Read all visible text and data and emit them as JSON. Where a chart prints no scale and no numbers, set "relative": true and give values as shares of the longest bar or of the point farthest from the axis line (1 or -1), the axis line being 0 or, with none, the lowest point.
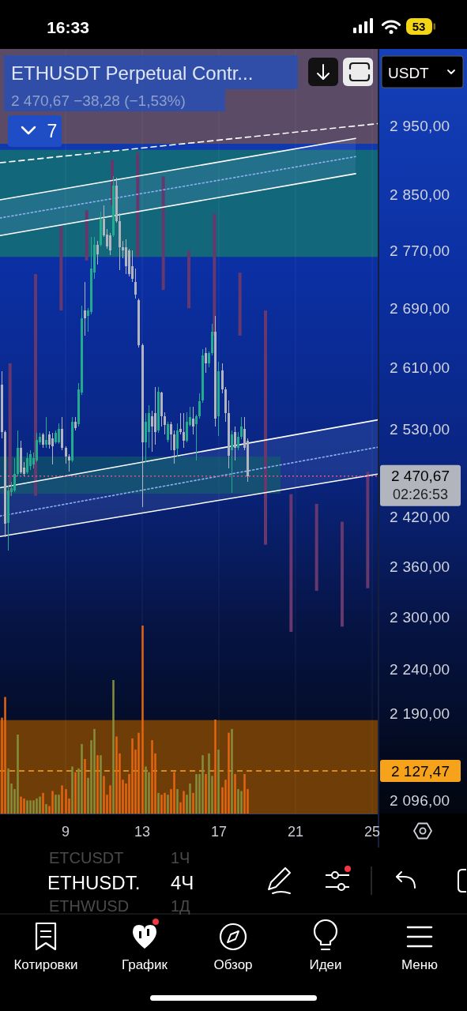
{
  "chart_data": [
    {
      "type": "candlestick",
      "title": "ETHUSDT Perpetual Contr...",
      "subtitle": "2 470,67 −38,28 (−1,53%)",
      "x": [
        5.667,
        5.833,
        6,
        6.167,
        6.333,
        6.5,
        6.667,
        6.833,
        7,
        7.167,
        7.333,
        7.5,
        7.667,
        7.833,
        8,
        8.167,
        8.333,
        8.5,
        8.667,
        8.833,
        9,
        9.167,
        9.333,
        9.5,
        9.667,
        9.833,
        10,
        10.167,
        10.333,
        10.5,
        10.667,
        10.833,
        11,
        11.167,
        11.333,
        11.5,
        11.667,
        11.833,
        12,
        12.167,
        12.333,
        12.5,
        12.667,
        12.833,
        13,
        13.167,
        13.333,
        13.5,
        13.667,
        13.833,
        14,
        14.167,
        14.333,
        14.5,
        14.667,
        14.833,
        15,
        15.167,
        15.333,
        15.5,
        15.667,
        15.833,
        16,
        16.167,
        16.333,
        16.5,
        16.667,
        16.833,
        17,
        17.167,
        17.333,
        17.5,
        17.667,
        17.833,
        18,
        18.167,
        18.333,
        18.5
      ],
      "ohlc": [
        [
          2588,
          2605,
          2518,
          2526
        ],
        [
          2526,
          2528,
          2395,
          2412
        ],
        [
          2413,
          2458,
          2379,
          2453
        ],
        [
          2451,
          2463,
          2446,
          2456
        ],
        [
          2453,
          2493,
          2451,
          2473
        ],
        [
          2473,
          2528,
          2470,
          2506
        ],
        [
          2506,
          2515,
          2473,
          2475
        ],
        [
          2481,
          2488,
          2470,
          2473
        ],
        [
          2475,
          2500,
          2473,
          2493
        ],
        [
          2483,
          2503,
          2478,
          2498
        ],
        [
          2485,
          2500,
          2480,
          2493
        ],
        [
          2490,
          2525,
          2488,
          2516
        ],
        [
          2513,
          2525,
          2510,
          2520
        ],
        [
          2523,
          2525,
          2506,
          2510
        ],
        [
          2510,
          2546,
          2506,
          2516
        ],
        [
          2523,
          2527,
          2505,
          2510
        ],
        [
          2518,
          2525,
          2485,
          2508
        ],
        [
          2513,
          2528,
          2511,
          2525
        ],
        [
          2513,
          2538,
          2511,
          2530
        ],
        [
          2530,
          2546,
          2503,
          2506
        ],
        [
          2506,
          2508,
          2486,
          2495
        ],
        [
          2495,
          2498,
          2476,
          2490
        ],
        [
          2490,
          2546,
          2488,
          2540
        ],
        [
          2540,
          2546,
          2528,
          2531
        ],
        [
          2536,
          2590,
          2533,
          2582
        ],
        [
          2577,
          2694,
          2574,
          2676
        ],
        [
          2687,
          2726,
          2653,
          2676
        ],
        [
          2680,
          2690,
          2658,
          2687
        ],
        [
          2685,
          2789,
          2682,
          2745
        ],
        [
          2739,
          2789,
          2731,
          2778
        ],
        [
          2778,
          2783,
          2750,
          2765
        ],
        [
          2778,
          2825,
          2776,
          2815
        ],
        [
          2815,
          2834,
          2789,
          2791
        ],
        [
          2792,
          2800,
          2772,
          2776
        ],
        [
          2791,
          2795,
          2764,
          2770
        ],
        [
          2791,
          2876,
          2789,
          2863
        ],
        [
          2863,
          2874,
          2809,
          2812
        ],
        [
          2812,
          2823,
          2742,
          2775
        ],
        [
          2775,
          2783,
          2759,
          2770
        ],
        [
          2775,
          2786,
          2737,
          2748
        ],
        [
          2770,
          2772,
          2734,
          2737
        ],
        [
          2748,
          2770,
          2726,
          2730
        ],
        [
          2726,
          2745,
          2703,
          2709
        ],
        [
          2701,
          2703,
          2637,
          2640
        ],
        [
          2640,
          2642,
          2432,
          2513
        ],
        [
          2513,
          2551,
          2488,
          2540
        ],
        [
          2526,
          2561,
          2506,
          2551
        ],
        [
          2547,
          2554,
          2501,
          2533
        ],
        [
          2551,
          2585,
          2510,
          2526
        ],
        [
          2528,
          2585,
          2525,
          2579
        ],
        [
          2577,
          2579,
          2533,
          2547
        ],
        [
          2547,
          2552,
          2523,
          2535
        ],
        [
          2516,
          2540,
          2513,
          2536
        ],
        [
          2536,
          2540,
          2503,
          2523
        ],
        [
          2523,
          2528,
          2486,
          2503
        ],
        [
          2505,
          2538,
          2495,
          2528
        ],
        [
          2530,
          2551,
          2523,
          2526
        ],
        [
          2526,
          2551,
          2506,
          2515
        ],
        [
          2515,
          2552,
          2513,
          2540
        ],
        [
          2535,
          2559,
          2533,
          2546
        ],
        [
          2544,
          2559,
          2523,
          2533
        ],
        [
          2536,
          2549,
          2490,
          2547
        ],
        [
          2547,
          2576,
          2544,
          2566
        ],
        [
          2567,
          2635,
          2564,
          2626
        ],
        [
          2630,
          2637,
          2603,
          2616
        ],
        [
          2616,
          2632,
          2611,
          2630
        ],
        [
          2630,
          2669,
          2626,
          2658
        ],
        [
          2658,
          2680,
          2533,
          2544
        ],
        [
          2547,
          2618,
          2521,
          2605
        ],
        [
          2607,
          2616,
          2576,
          2582
        ],
        [
          2582,
          2585,
          2540,
          2551
        ],
        [
          2551,
          2567,
          2480,
          2496
        ],
        [
          2503,
          2528,
          2450,
          2523
        ],
        [
          2526,
          2533,
          2490,
          2506
        ],
        [
          2506,
          2526,
          2503,
          2520
        ],
        [
          2520,
          2546,
          2517,
          2533
        ],
        [
          2530,
          2546,
          2503,
          2506
        ],
        [
          2515,
          2518,
          2463,
          2470.67
        ]
      ],
      "colors": [
        "#b2b5be",
        "#b2b5be",
        "#22ab8c",
        "#22ab8c",
        "#22ab8c",
        "#22ab8c",
        "#b2b5be",
        "#b2b5be",
        "#22ab8c",
        "#22ab8c",
        "#22ab8c",
        "#22ab8c",
        "#22ab8c",
        "#b2b5be",
        "#22ab8c",
        "#b2b5be",
        "#b2b5be",
        "#22ab8c",
        "#22ab8c",
        "#b2b5be",
        "#b2b5be",
        "#b2b5be",
        "#22ab8c",
        "#b2b5be",
        "#22ab8c",
        "#22ab8c",
        "#b2b5be",
        "#22ab8c",
        "#22ab8c",
        "#22ab8c",
        "#b2b5be",
        "#22ab8c",
        "#b2b5be",
        "#b2b5be",
        "#b2b5be",
        "#22ab8c",
        "#b2b5be",
        "#b2b5be",
        "#b2b5be",
        "#b2b5be",
        "#b2b5be",
        "#b2b5be",
        "#b2b5be",
        "#b2b5be",
        "#b2b5be",
        "#22ab8c",
        "#22ab8c",
        "#b2b5be",
        "#b2b5be",
        "#22ab8c",
        "#b2b5be",
        "#b2b5be",
        "#22ab8c",
        "#b2b5be",
        "#b2b5be",
        "#22ab8c",
        "#b2b5be",
        "#b2b5be",
        "#22ab8c",
        "#22ab8c",
        "#b2b5be",
        "#22ab8c",
        "#22ab8c",
        "#22ab8c",
        "#b2b5be",
        "#22ab8c",
        "#22ab8c",
        "#b2b5be",
        "#22ab8c",
        "#b2b5be",
        "#b2b5be",
        "#b2b5be",
        "#22ab8c",
        "#b2b5be",
        "#22ab8c",
        "#22ab8c",
        "#b2b5be",
        "#b2b5be"
      ],
      "series": [
        {
          "type": "line",
          "x": [
            5.577,
            25.289
          ],
          "values": [
            2896,
            2954
          ],
          "color": "#ffffff",
          "line_style": "dashed"
        },
        {
          "type": "line",
          "x": [
            5.577,
            24.134
          ],
          "values": [
            2842,
            2932
          ],
          "color": "#ffffff"
        },
        {
          "type": "line",
          "x": [
            5.577,
            24.134
          ],
          "values": [
            2816,
            2905
          ],
          "lower": [
            2791,
            2880
          ],
          "upper": [
            2842,
            2932
          ],
          "color": "#8fb0f0",
          "line_style": "dotted"
        },
        {
          "type": "line",
          "x": [
            5.577,
            24.134
          ],
          "values": [
            2791,
            2880
          ],
          "color": "#ffffff"
        },
        {
          "type": "line",
          "x": [
            5.577,
            25.289
          ],
          "values": [
            2456,
            2542
          ],
          "color": "#ffffff"
        },
        {
          "type": "line",
          "x": [
            5.577,
            25.289
          ],
          "values": [
            2421,
            2507
          ],
          "lower": [
            2396,
            2473
          ],
          "upper": [
            2456,
            2542
          ],
          "color": "#8fb0f0",
          "line_style": "dotted"
        },
        {
          "type": "line",
          "x": [
            5.577,
            25.289
          ],
          "values": [
            2396,
            2473
          ],
          "color": "#ffffff"
        },
        {
          "type": "bar",
          "x": [
            6.1,
            7.433,
            8.767,
            10.1,
            11.433,
            12.767,
            14.1,
            15.433,
            16.767,
            18.1,
            19.433,
            20.767,
            22.1,
            23.433,
            24.767
          ],
          "base": [
            2446,
            2446,
            2687,
            2756,
            2834,
            2761,
            2715,
            2690,
            2653,
            2653,
            2386,
            2283,
            2331,
            2289,
            2334
          ],
          "values": [
            170,
            291,
            117,
            71,
            66,
            150,
            161,
            80,
            169,
            86,
            301,
            165,
            105,
            125,
            142
          ],
          "color": "#66386e"
        }
      ],
      "xlim": [
        5.577,
        25.289
      ],
      "xticks": [
        9,
        13,
        17,
        21,
        25
      ],
      "ylim": [
        2082,
        3068
      ],
      "yticks": [
        {
          "value": 2950,
          "label": "2 950,00"
        },
        {
          "value": 2850,
          "label": "2 850,00"
        },
        {
          "value": 2770,
          "label": "2 770,00"
        },
        {
          "value": 2690,
          "label": "2 690,00"
        },
        {
          "value": 2610,
          "label": "2 610,00"
        },
        {
          "value": 2530,
          "label": "2 530,00"
        },
        {
          "value": 2420,
          "label": "2 420,00"
        },
        {
          "value": 2360,
          "label": "2 360,00"
        },
        {
          "value": 2300,
          "label": "2 300,00"
        },
        {
          "value": 2240,
          "label": "2 240,00"
        },
        {
          "value": 2190,
          "label": "2 190,00"
        },
        {
          "value": 2096,
          "label": "2 096,00"
        }
      ],
      "log": true,
      "grid": "x",
      "bands": [
        {
          "axis": "y",
          "from": 2924,
          "to": 3068,
          "color": "#5b4b66"
        },
        {
          "axis": "y",
          "from": 2761,
          "to": 2915,
          "color": "#12677a"
        },
        {
          "axis": "y",
          "from": 2082,
          "to": 2183,
          "color": "#6e3d08"
        }
      ],
      "ref_lines": [
        {
          "axis": "y",
          "value": 2470.67,
          "label": "2 470,67",
          "color": "#e0508c",
          "line_style": "dotted"
        },
        {
          "axis": "y",
          "value": 2127.47,
          "label": "2 127,47",
          "color": "#f7a21b",
          "line_style": "dashed"
        }
      ],
      "annotations": [
        "7",
        "02:26:53",
        "16:33",
        "53",
        "USDT",
        "ETCUSDT",
        "1Ч",
        "ETHUSDT.",
        "4Ч",
        "ETHWUSD",
        "1Д",
        "Котировки",
        "График",
        "Обзор",
        "Идеи",
        "Меню"
      ]
    },
    {
      "type": "bar",
      "relative": true,
      "categories": [
        null,
        null,
        null,
        null,
        null,
        null,
        null,
        null,
        null,
        null,
        null,
        null,
        null,
        null,
        null,
        null,
        null,
        null,
        null,
        null,
        null,
        null,
        null,
        null,
        null,
        null,
        null,
        null,
        null,
        null,
        null,
        null,
        null,
        null,
        null,
        null,
        null,
        null,
        null,
        null,
        null,
        null,
        null,
        null,
        null,
        null,
        null,
        null,
        null,
        null,
        null,
        null,
        null,
        null,
        null,
        null,
        null,
        null,
        null,
        null,
        null,
        null,
        null,
        null,
        null,
        null,
        null,
        null,
        null,
        null,
        null,
        null,
        null,
        null,
        null,
        null,
        null,
        null
      ],
      "values": [
        0.51,
        0.62,
        0.24,
        0.16,
        0.13,
        0.42,
        0.09,
        0.08,
        0.07,
        0.07,
        0.07,
        0.08,
        0.09,
        0.11,
        0.05,
        0.04,
        0.12,
        0.1,
        0.1,
        0.15,
        0.13,
        0.08,
        0.25,
        0.22,
        0.24,
        0.37,
        0.29,
        0.19,
        0.39,
        0.45,
        0.31,
        0.31,
        0.2,
        0.1,
        0.15,
        0.71,
        0.41,
        0.32,
        0.18,
        0.16,
        0.21,
        0.4,
        0.34,
        0.43,
        1,
        0.25,
        0.22,
        0.39,
        0.32,
        0.11,
        0.1,
        0.11,
        0.1,
        0.13,
        0.22,
        0.13,
        0.06,
        0.12,
        0.1,
        0.16,
        0.11,
        0.21,
        0.21,
        0.31,
        0.21,
        0.32,
        0.2,
        0.5,
        0.34,
        0.14,
        0.18,
        0.43,
        0.45,
        0.21,
        0.13,
        0.12,
        0.21,
        0.13
      ],
      "colors": [
        "#e4650f",
        "#e4650f",
        "#858f3a",
        "#858f3a",
        "#858f3a",
        "#858f3a",
        "#e4650f",
        "#e4650f",
        "#858f3a",
        "#858f3a",
        "#858f3a",
        "#858f3a",
        "#858f3a",
        "#e4650f",
        "#858f3a",
        "#e4650f",
        "#e4650f",
        "#858f3a",
        "#858f3a",
        "#e4650f",
        "#e4650f",
        "#e4650f",
        "#858f3a",
        "#e4650f",
        "#858f3a",
        "#858f3a",
        "#e4650f",
        "#858f3a",
        "#858f3a",
        "#858f3a",
        "#e4650f",
        "#858f3a",
        "#e4650f",
        "#e4650f",
        "#e4650f",
        "#858f3a",
        "#e4650f",
        "#e4650f",
        "#e4650f",
        "#e4650f",
        "#e4650f",
        "#e4650f",
        "#e4650f",
        "#e4650f",
        "#e4650f",
        "#858f3a",
        "#858f3a",
        "#e4650f",
        "#e4650f",
        "#858f3a",
        "#e4650f",
        "#e4650f",
        "#858f3a",
        "#e4650f",
        "#e4650f",
        "#858f3a",
        "#e4650f",
        "#e4650f",
        "#858f3a",
        "#858f3a",
        "#e4650f",
        "#858f3a",
        "#858f3a",
        "#858f3a",
        "#e4650f",
        "#858f3a",
        "#858f3a",
        "#e4650f",
        "#858f3a",
        "#e4650f",
        "#e4650f",
        "#e4650f",
        "#858f3a",
        "#e4650f",
        "#858f3a",
        "#858f3a",
        "#e4650f",
        "#e4650f"
      ]
    }
  ]
}
